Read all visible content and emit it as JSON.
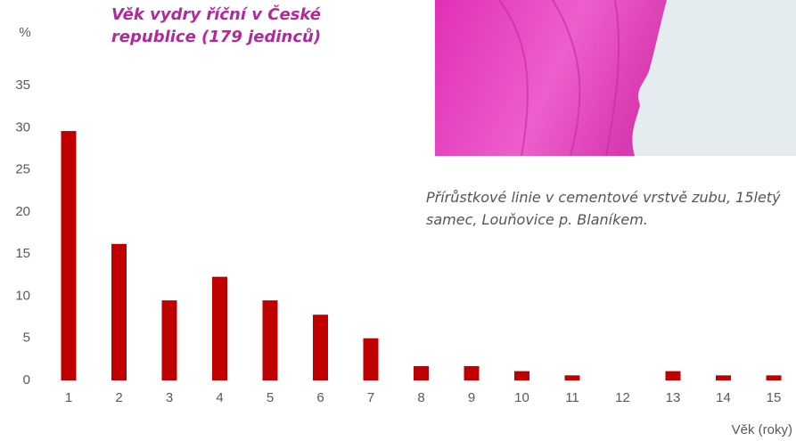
{
  "chart_data": {
    "type": "bar",
    "title": "Věk vydry říční v České republice (179 jedinců)",
    "annotation": "Přírůstkové linie v cementové vrstvě zubu, 15letý samec, Louňovice p. Blaníkem.",
    "y_label": "%",
    "x_label": "Věk (roky)",
    "categories": [
      1,
      2,
      3,
      4,
      5,
      6,
      7,
      8,
      9,
      10,
      11,
      12,
      13,
      14,
      15
    ],
    "values": [
      29.6,
      16.2,
      9.5,
      12.3,
      9.5,
      7.8,
      5.0,
      1.7,
      1.7,
      1.1,
      0.6,
      0,
      1.1,
      0.6,
      0.6
    ],
    "color": "#c00000",
    "ylim": [
      0,
      35
    ],
    "yticks": [
      0,
      5,
      10,
      15,
      20,
      25,
      30,
      35
    ],
    "grid": false
  }
}
